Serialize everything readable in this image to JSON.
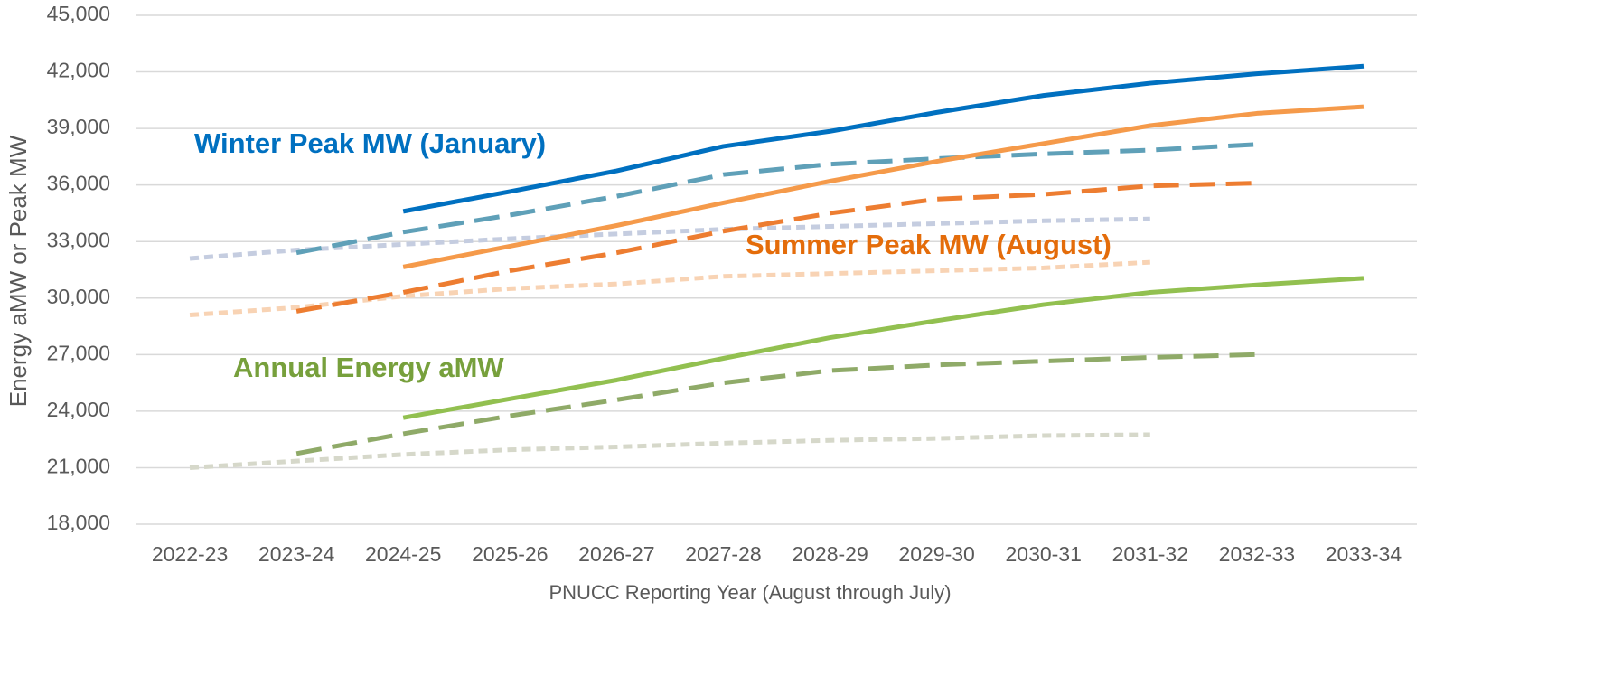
{
  "chart_data": {
    "type": "line",
    "xlabel": "PNUCC Reporting Year (August through July)",
    "ylabel": "Energy aMW or Peak MW",
    "categories": [
      "2022-23",
      "2023-24",
      "2024-25",
      "2025-26",
      "2026-27",
      "2027-28",
      "2028-29",
      "2029-30",
      "2030-31",
      "2031-32",
      "2032-33",
      "2033-34"
    ],
    "ylim": [
      18000,
      45000
    ],
    "yticks": [
      {
        "value": 18000,
        "label": "18,000"
      },
      {
        "value": 21000,
        "label": "21,000"
      },
      {
        "value": 24000,
        "label": "24,000"
      },
      {
        "value": 27000,
        "label": "27,000"
      },
      {
        "value": 30000,
        "label": "30,000"
      },
      {
        "value": 33000,
        "label": "33,000"
      },
      {
        "value": 36000,
        "label": "36,000"
      },
      {
        "value": 39000,
        "label": "39,000"
      },
      {
        "value": 42000,
        "label": "42,000"
      },
      {
        "value": 45000,
        "label": "45,000"
      }
    ],
    "grid": true,
    "series": [
      {
        "color": "#c5cde0",
        "dash": "dotted",
        "values": [
          32100,
          32550,
          32850,
          33150,
          33400,
          33650,
          33800,
          33950,
          34100,
          34200,
          null,
          null
        ]
      },
      {
        "color": "#f8d3b4",
        "dash": "dotted",
        "values": [
          29100,
          29500,
          30100,
          30500,
          30750,
          31150,
          31300,
          31450,
          31600,
          31900,
          null,
          null
        ]
      },
      {
        "color": "#d6d8ca",
        "dash": "dotted",
        "values": [
          21000,
          21350,
          21700,
          21950,
          22100,
          22300,
          22450,
          22550,
          22700,
          22750,
          null,
          null
        ]
      },
      {
        "color": "#5fa0b8",
        "dash": "dashed",
        "values": [
          null,
          32400,
          33500,
          34400,
          35400,
          36550,
          37100,
          37400,
          37650,
          37850,
          38150,
          null
        ]
      },
      {
        "color": "#ed7d31",
        "dash": "dashed",
        "values": [
          null,
          29300,
          30300,
          31450,
          32400,
          33550,
          34500,
          35250,
          35500,
          35950,
          36100,
          null
        ]
      },
      {
        "color": "#8faa68",
        "dash": "dashed",
        "values": [
          null,
          21750,
          22800,
          23750,
          24600,
          25500,
          26150,
          26450,
          26650,
          26850,
          27000,
          null
        ]
      },
      {
        "color": "#0070c0",
        "dash": "solid",
        "values": [
          null,
          null,
          34600,
          35650,
          36750,
          38050,
          38850,
          39850,
          40750,
          41400,
          41900,
          42300
        ]
      },
      {
        "color": "#f59a4a",
        "dash": "solid",
        "values": [
          null,
          null,
          31650,
          32750,
          33850,
          35050,
          36200,
          37250,
          38200,
          39150,
          39800,
          40150
        ]
      },
      {
        "color": "#92c050",
        "dash": "solid",
        "values": [
          null,
          null,
          23650,
          24650,
          25650,
          26800,
          27900,
          28800,
          29650,
          30300,
          30700,
          31050
        ]
      }
    ],
    "annotations": [
      {
        "text": "Winter Peak MW (January)",
        "color": "#0070c0"
      },
      {
        "text": "Summer Peak MW (August)",
        "color": "#e46c0a"
      },
      {
        "text": "Annual Energy aMW",
        "color": "#77a03c"
      }
    ]
  }
}
